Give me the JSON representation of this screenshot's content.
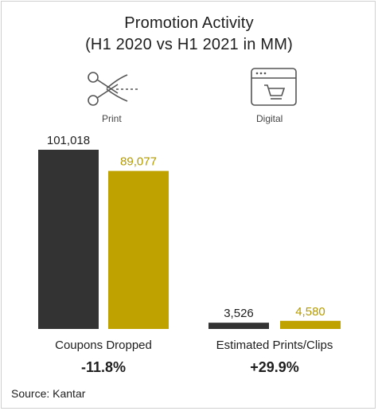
{
  "title_line1": "Promotion Activity",
  "title_line2": "(H1 2020 vs H1 2021 in MM)",
  "icons": {
    "print": {
      "name": "scissors-coupon-icon",
      "label": "Print"
    },
    "digital": {
      "name": "browser-cart-icon",
      "label": "Digital"
    }
  },
  "source": "Source: Kantar",
  "colors": {
    "h1_2020": "#333333",
    "h1_2021": "#bfa200",
    "label_2021": "#b39a00"
  },
  "chart_data": {
    "type": "bar",
    "title": "Promotion Activity (H1 2020 vs H1 2021 in MM)",
    "categories": [
      "Coupons Dropped",
      "Estimated Prints/Clips"
    ],
    "series": [
      {
        "values": [
          101018,
          3526
        ],
        "labels": [
          "101,018",
          "3,526"
        ]
      },
      {
        "values": [
          89077,
          4580
        ],
        "labels": [
          "89,077",
          "4,580"
        ]
      }
    ],
    "changes": [
      "-11.8%",
      "+29.9%"
    ],
    "xlabel": "",
    "ylabel": "",
    "ylim": [
      0,
      101018
    ],
    "grid": false,
    "legend": "none"
  }
}
